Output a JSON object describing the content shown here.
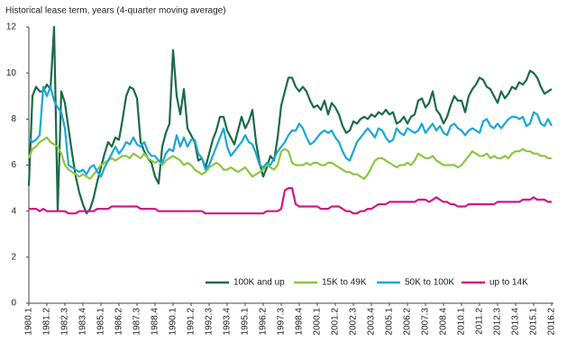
{
  "chart_data": {
    "type": "line",
    "title": "Historical lease term, years (4-quarter moving average)",
    "categories": [
      "1980.1",
      null,
      null,
      null,
      null,
      "1981.2",
      null,
      null,
      null,
      null,
      "1982.3",
      null,
      null,
      null,
      null,
      "1983.4",
      null,
      null,
      null,
      null,
      "1985.1",
      null,
      null,
      null,
      null,
      "1986.2",
      null,
      null,
      null,
      null,
      "1987.3",
      null,
      null,
      null,
      null,
      "1988.4",
      null,
      null,
      null,
      null,
      "1990.1",
      null,
      null,
      null,
      null,
      "1991.2",
      null,
      null,
      null,
      null,
      "1992.3",
      null,
      null,
      null,
      null,
      "1993.4",
      null,
      null,
      null,
      null,
      "1995.1",
      null,
      null,
      null,
      null,
      "1996.2",
      null,
      null,
      null,
      null,
      "1997.3",
      null,
      null,
      null,
      null,
      "1998.4",
      null,
      null,
      null,
      null,
      "2000.1",
      null,
      null,
      null,
      null,
      "2001.2",
      null,
      null,
      null,
      null,
      "2002.3",
      null,
      null,
      null,
      null,
      "2003.4",
      null,
      null,
      null,
      null,
      "2005.1",
      null,
      null,
      null,
      null,
      "2006.2",
      null,
      null,
      null,
      null,
      "2007.3",
      null,
      null,
      null,
      null,
      "2008.4",
      null,
      null,
      null,
      null,
      "2010.1",
      null,
      null,
      null,
      null,
      "2011.2",
      null,
      null,
      null,
      null,
      "2012.3",
      null,
      null,
      null,
      null,
      "2013.4",
      null,
      null,
      null,
      null,
      "2015.1",
      null,
      null,
      null,
      null,
      "2016.2"
    ],
    "series": [
      {
        "name": "100K and up",
        "color": "#1a6b48",
        "values": [
          5.1,
          9.0,
          9.4,
          9.2,
          9.2,
          9.5,
          9.3,
          12.0,
          4.0,
          9.2,
          8.7,
          7.6,
          6.5,
          5.5,
          4.8,
          4.3,
          3.9,
          4.1,
          4.6,
          5.3,
          5.9,
          6.5,
          7.0,
          6.8,
          7.2,
          7.1,
          8.0,
          9.0,
          9.4,
          9.3,
          8.9,
          7.0,
          6.6,
          6.3,
          6.1,
          5.5,
          5.2,
          6.8,
          7.4,
          7.8,
          11.0,
          9.0,
          8.2,
          9.3,
          7.6,
          7.3,
          7.0,
          6.2,
          6.3,
          5.9,
          6.5,
          7.1,
          7.5,
          8.1,
          8.1,
          7.5,
          7.2,
          6.9,
          7.5,
          8.1,
          7.6,
          7.9,
          8.4,
          7.0,
          6.1,
          5.5,
          5.9,
          6.4,
          6.2,
          7.2,
          8.6,
          9.2,
          9.8,
          9.8,
          9.4,
          9.2,
          9.4,
          9.2,
          8.8,
          8.5,
          8.6,
          8.4,
          8.8,
          8.2,
          8.7,
          8.5,
          8.2,
          7.7,
          7.4,
          7.5,
          7.9,
          7.8,
          8.0,
          8.1,
          8.0,
          8.2,
          8.1,
          8.3,
          8.2,
          8.4,
          8.2,
          8.3,
          7.8,
          7.9,
          8.1,
          7.8,
          8.1,
          8.2,
          8.8,
          8.9,
          8.5,
          8.7,
          9.2,
          8.4,
          8.2,
          7.8,
          8.1,
          8.6,
          9.0,
          8.8,
          8.8,
          8.3,
          9.0,
          9.3,
          9.5,
          9.8,
          9.7,
          9.4,
          9.3,
          9.0,
          8.7,
          9.2,
          8.9,
          9.1,
          9.4,
          9.3,
          9.6,
          9.5,
          9.7,
          10.1,
          10.0,
          9.8,
          9.4,
          9.1,
          9.2,
          9.3
        ]
      },
      {
        "name": "15K to 49K",
        "color": "#8dc63f",
        "values": [
          6.3,
          6.7,
          6.8,
          7.0,
          7.1,
          7.2,
          7.0,
          6.9,
          6.8,
          6.5,
          6.0,
          5.8,
          5.7,
          5.6,
          5.5,
          5.6,
          5.5,
          5.4,
          5.6,
          5.8,
          6.0,
          6.1,
          6.2,
          6.3,
          6.2,
          6.3,
          6.4,
          6.4,
          6.3,
          6.5,
          6.4,
          6.3,
          6.5,
          6.3,
          6.2,
          6.1,
          6.2,
          6.0,
          6.2,
          6.3,
          6.4,
          6.3,
          6.2,
          6.0,
          6.1,
          6.0,
          5.8,
          5.7,
          5.6,
          5.7,
          5.9,
          6.0,
          6.1,
          6.0,
          5.8,
          5.8,
          5.9,
          5.8,
          5.7,
          5.8,
          5.9,
          5.7,
          5.5,
          5.6,
          5.7,
          5.8,
          6.0,
          5.9,
          5.8,
          6.0,
          6.6,
          6.7,
          6.6,
          6.1,
          6.0,
          6.0,
          6.0,
          6.1,
          6.0,
          6.1,
          6.1,
          6.0,
          6.0,
          6.1,
          6.1,
          6.0,
          5.9,
          5.8,
          5.7,
          5.7,
          5.6,
          5.6,
          5.5,
          5.4,
          5.6,
          5.9,
          6.2,
          6.3,
          6.3,
          6.2,
          6.1,
          6.0,
          5.9,
          6.0,
          6.0,
          6.1,
          6.0,
          6.2,
          6.5,
          6.4,
          6.3,
          6.3,
          6.4,
          6.2,
          6.1,
          6.0,
          6.0,
          6.0,
          6.0,
          5.9,
          6.0,
          6.2,
          6.4,
          6.6,
          6.5,
          6.4,
          6.4,
          6.5,
          6.3,
          6.4,
          6.3,
          6.3,
          6.4,
          6.3,
          6.5,
          6.6,
          6.6,
          6.7,
          6.6,
          6.6,
          6.5,
          6.5,
          6.4,
          6.4,
          6.3,
          6.3
        ]
      },
      {
        "name": "50K to 100K",
        "color": "#1aa7d8",
        "values": [
          7.2,
          7.0,
          7.1,
          7.3,
          9.4,
          9.0,
          9.4,
          8.8,
          8.5,
          8.3,
          7.6,
          6.0,
          5.9,
          5.8,
          5.7,
          5.8,
          5.6,
          5.9,
          6.0,
          5.7,
          5.5,
          5.9,
          6.2,
          6.5,
          6.8,
          6.5,
          6.7,
          7.0,
          6.9,
          7.2,
          6.9,
          6.8,
          7.0,
          6.6,
          6.4,
          6.4,
          6.2,
          6.1,
          6.5,
          6.7,
          6.6,
          7.3,
          6.8,
          7.2,
          6.8,
          7.1,
          7.1,
          6.5,
          6.3,
          5.8,
          6.0,
          6.4,
          6.8,
          7.2,
          7.6,
          6.8,
          6.4,
          6.6,
          6.8,
          7.0,
          7.3,
          7.0,
          6.9,
          6.5,
          6.0,
          5.9,
          6.1,
          6.0,
          6.3,
          6.6,
          6.8,
          7.0,
          7.3,
          7.5,
          7.5,
          7.8,
          7.6,
          7.2,
          6.9,
          7.0,
          7.2,
          7.4,
          7.5,
          7.4,
          7.5,
          7.2,
          7.0,
          6.6,
          6.3,
          6.2,
          6.6,
          7.0,
          7.2,
          7.4,
          7.6,
          7.4,
          7.2,
          7.6,
          7.5,
          7.2,
          7.0,
          7.1,
          7.6,
          7.4,
          7.3,
          7.6,
          7.5,
          7.4,
          7.5,
          7.8,
          7.4,
          7.6,
          7.8,
          7.5,
          7.7,
          7.4,
          7.3,
          7.7,
          7.8,
          7.6,
          7.5,
          7.3,
          7.5,
          7.6,
          7.5,
          7.4,
          7.9,
          8.0,
          7.7,
          7.6,
          7.8,
          7.6,
          7.8,
          8.0,
          8.1,
          8.1,
          8.0,
          8.1,
          7.7,
          7.8,
          8.3,
          8.2,
          7.8,
          7.7,
          8.0,
          7.7
        ]
      },
      {
        "name": "up to 14K",
        "color": "#d4148a",
        "values": [
          4.1,
          4.1,
          4.1,
          4.0,
          4.1,
          4.0,
          4.0,
          4.0,
          4.0,
          4.0,
          4.0,
          3.9,
          3.9,
          3.9,
          4.0,
          4.0,
          4.0,
          4.0,
          4.0,
          4.1,
          4.1,
          4.1,
          4.1,
          4.2,
          4.2,
          4.2,
          4.2,
          4.2,
          4.2,
          4.2,
          4.2,
          4.1,
          4.1,
          4.1,
          4.1,
          4.1,
          4.0,
          4.0,
          4.0,
          4.0,
          4.0,
          4.0,
          4.0,
          4.0,
          4.0,
          4.0,
          4.0,
          4.0,
          4.0,
          3.9,
          3.9,
          3.9,
          3.9,
          3.9,
          3.9,
          3.9,
          3.9,
          3.9,
          3.9,
          3.9,
          3.9,
          3.9,
          3.9,
          3.9,
          3.9,
          3.9,
          4.0,
          4.0,
          4.0,
          4.0,
          4.1,
          4.9,
          5.0,
          5.0,
          4.3,
          4.2,
          4.2,
          4.2,
          4.2,
          4.2,
          4.2,
          4.1,
          4.1,
          4.1,
          4.2,
          4.2,
          4.2,
          4.1,
          4.0,
          4.0,
          3.9,
          3.9,
          4.0,
          4.0,
          4.1,
          4.1,
          4.2,
          4.3,
          4.3,
          4.3,
          4.4,
          4.4,
          4.4,
          4.4,
          4.4,
          4.4,
          4.4,
          4.4,
          4.5,
          4.5,
          4.5,
          4.4,
          4.5,
          4.6,
          4.5,
          4.4,
          4.4,
          4.3,
          4.3,
          4.2,
          4.2,
          4.2,
          4.3,
          4.3,
          4.3,
          4.3,
          4.3,
          4.3,
          4.3,
          4.3,
          4.4,
          4.4,
          4.4,
          4.4,
          4.4,
          4.4,
          4.4,
          4.5,
          4.5,
          4.5,
          4.6,
          4.5,
          4.5,
          4.5,
          4.4,
          4.4
        ]
      }
    ],
    "ylim": [
      0,
      12
    ],
    "yticks": [
      0,
      2,
      4,
      6,
      8,
      10,
      12
    ],
    "grid": false,
    "legend": "bottom"
  }
}
